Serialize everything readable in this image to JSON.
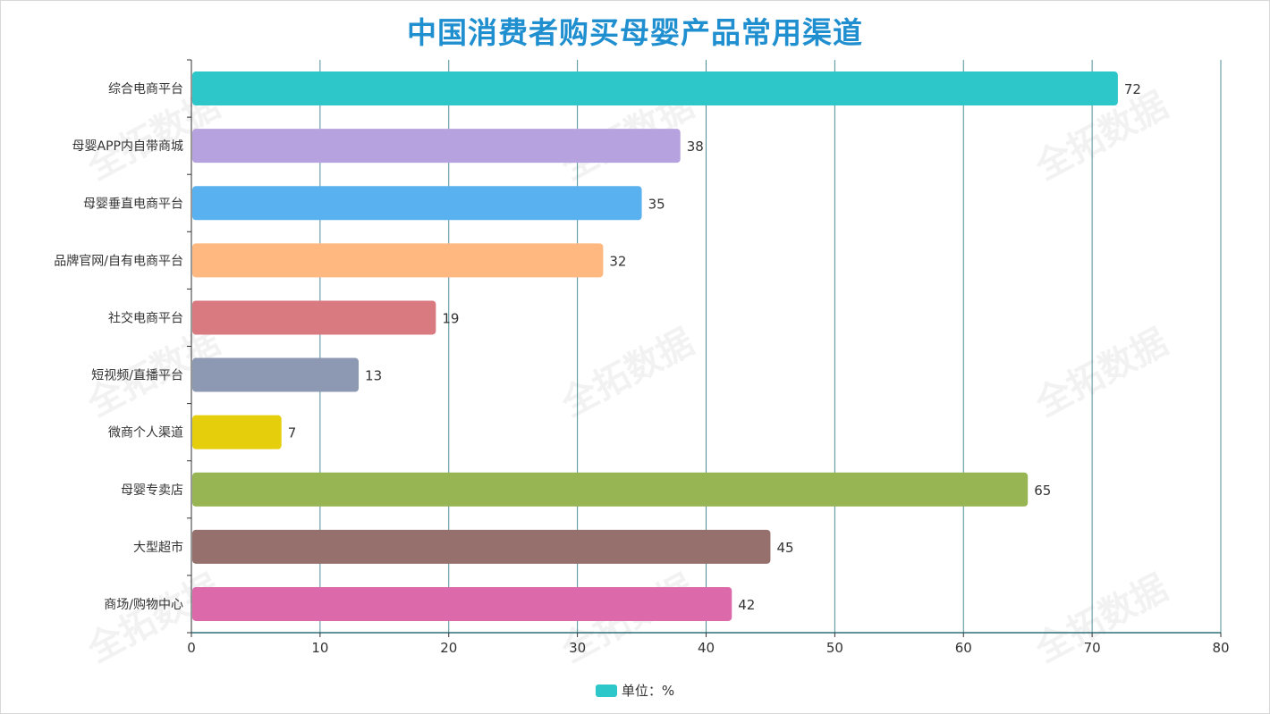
{
  "title": "中国消费者购买母婴产品常用渠道",
  "watermark": "全拓数据",
  "legend": {
    "label": "单位：%",
    "color": "#2ec7c9"
  },
  "chart_data": {
    "type": "bar",
    "orientation": "horizontal",
    "title": "中国消费者购买母婴产品常用渠道",
    "categories": [
      "综合电商平台",
      "母婴APP内自带商城",
      "母婴垂直电商平台",
      "品牌官网/自有电商平台",
      "社交电商平台",
      "短视频/直播平台",
      "微商个人渠道",
      "母婴专卖店",
      "大型超市",
      "商场/购物中心"
    ],
    "values": [
      72,
      38,
      35,
      32,
      19,
      13,
      7,
      65,
      45,
      42
    ],
    "colors": [
      "#2ec7c9",
      "#b6a2de",
      "#5ab1ef",
      "#ffb980",
      "#d87a80",
      "#8d98b3",
      "#e5cf0d",
      "#97b552",
      "#95706d",
      "#dc69aa"
    ],
    "series_name": "单位：%",
    "xlim": [
      0,
      80
    ],
    "xticks": [
      0,
      10,
      20,
      30,
      40,
      50,
      60,
      70,
      80
    ],
    "grid": true,
    "legend_position": "bottom-center",
    "data_labels": true
  }
}
